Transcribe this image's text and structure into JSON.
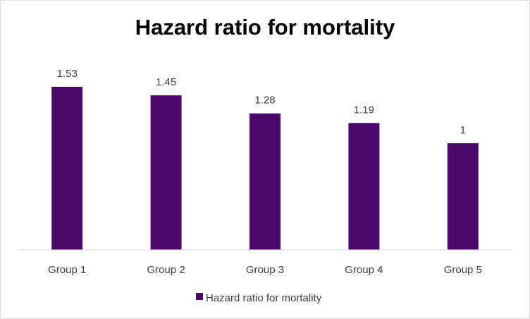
{
  "chart_data": {
    "type": "bar",
    "title": "Hazard ratio for mortality",
    "categories": [
      "Group 1",
      "Group 2",
      "Group 3",
      "Group 4",
      "Group 5"
    ],
    "series": [
      {
        "name": "Hazard ratio for mortality",
        "values": [
          1.53,
          1.45,
          1.28,
          1.19,
          1
        ],
        "labels": [
          "1.53",
          "1.45",
          "1.28",
          "1.19",
          "1"
        ],
        "color": "#4b0a6b"
      }
    ],
    "ylim": [
      0,
      1.53
    ],
    "grid": false,
    "legend_position": "bottom",
    "axis_color": "#d9d9d9"
  }
}
